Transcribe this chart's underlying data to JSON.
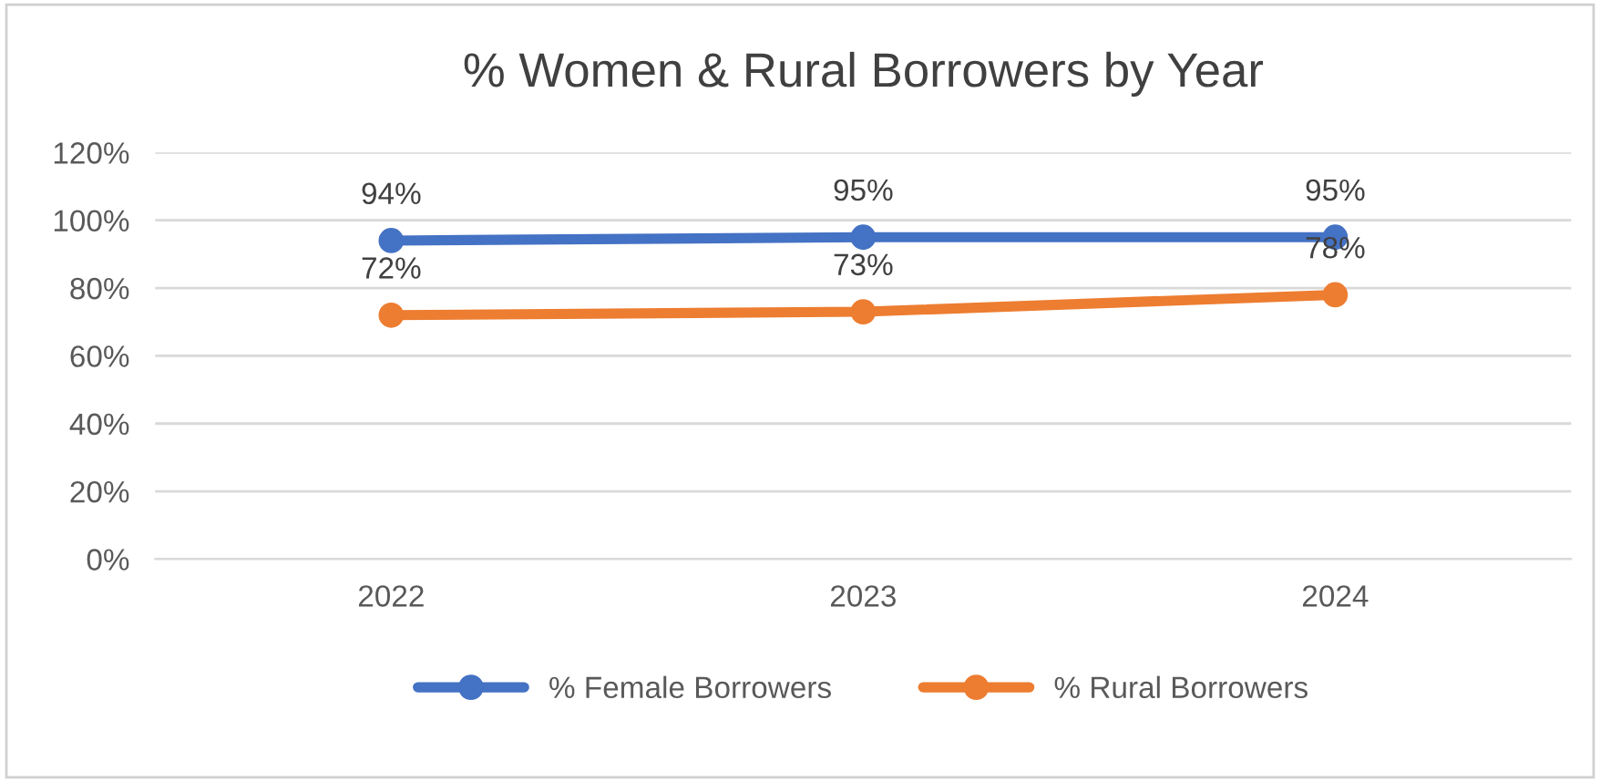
{
  "chart_data": {
    "type": "line",
    "title": "% Women & Rural Borrowers by Year",
    "categories": [
      "2022",
      "2023",
      "2024"
    ],
    "series": [
      {
        "name": "% Female Borrowers",
        "color": "#4472c4",
        "values": [
          94,
          95,
          95
        ],
        "value_labels": [
          "94%",
          "95%",
          "95%"
        ]
      },
      {
        "name": "% Rural Borrowers",
        "color": "#ed7d31",
        "values": [
          72,
          73,
          78
        ],
        "value_labels": [
          "72%",
          "73%",
          "78%"
        ]
      }
    ],
    "ylim": [
      0,
      120
    ],
    "yticks": [
      {
        "value": 0,
        "label": "0%"
      },
      {
        "value": 20,
        "label": "20%"
      },
      {
        "value": 40,
        "label": "40%"
      },
      {
        "value": 60,
        "label": "60%"
      },
      {
        "value": 80,
        "label": "80%"
      },
      {
        "value": 100,
        "label": "100%"
      },
      {
        "value": 120,
        "label": "120%"
      }
    ],
    "grid": "y",
    "legend": "bottom",
    "marker": "circle",
    "line_style": "solid"
  }
}
